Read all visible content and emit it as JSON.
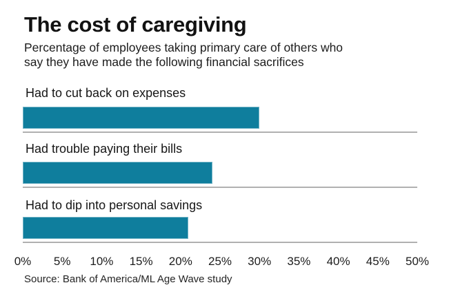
{
  "header": {
    "title": "The cost of caregiving",
    "subtitle": "Percentage of employees taking primary care of others who say they have made the following financial sacrifices"
  },
  "source_note": "Source: Bank of America/ML Age Wave study",
  "colors": {
    "bar": "#0f7e9d",
    "baseline": "#b0b0b0",
    "text": "#1b1b1b"
  },
  "chart_data": {
    "type": "bar",
    "orientation": "horizontal",
    "title": "The cost of caregiving",
    "subtitle": "Percentage of employees taking primary care of others who say they have made the following financial sacrifices",
    "categories": [
      "Had to cut back on expenses",
      "Had trouble paying their bills",
      "Had to dip into personal savings"
    ],
    "values": [
      30,
      24,
      21
    ],
    "unit": "%",
    "xlabel": "",
    "ylabel": "",
    "xlim": [
      0,
      50
    ],
    "tick_step": 5,
    "tick_labels": [
      "0%",
      "5%",
      "10%",
      "15%",
      "20%",
      "25%",
      "30%",
      "35%",
      "40%",
      "45%",
      "50%"
    ],
    "grid": false,
    "legend": false,
    "source": "Source: Bank of America/ML Age Wave study"
  }
}
